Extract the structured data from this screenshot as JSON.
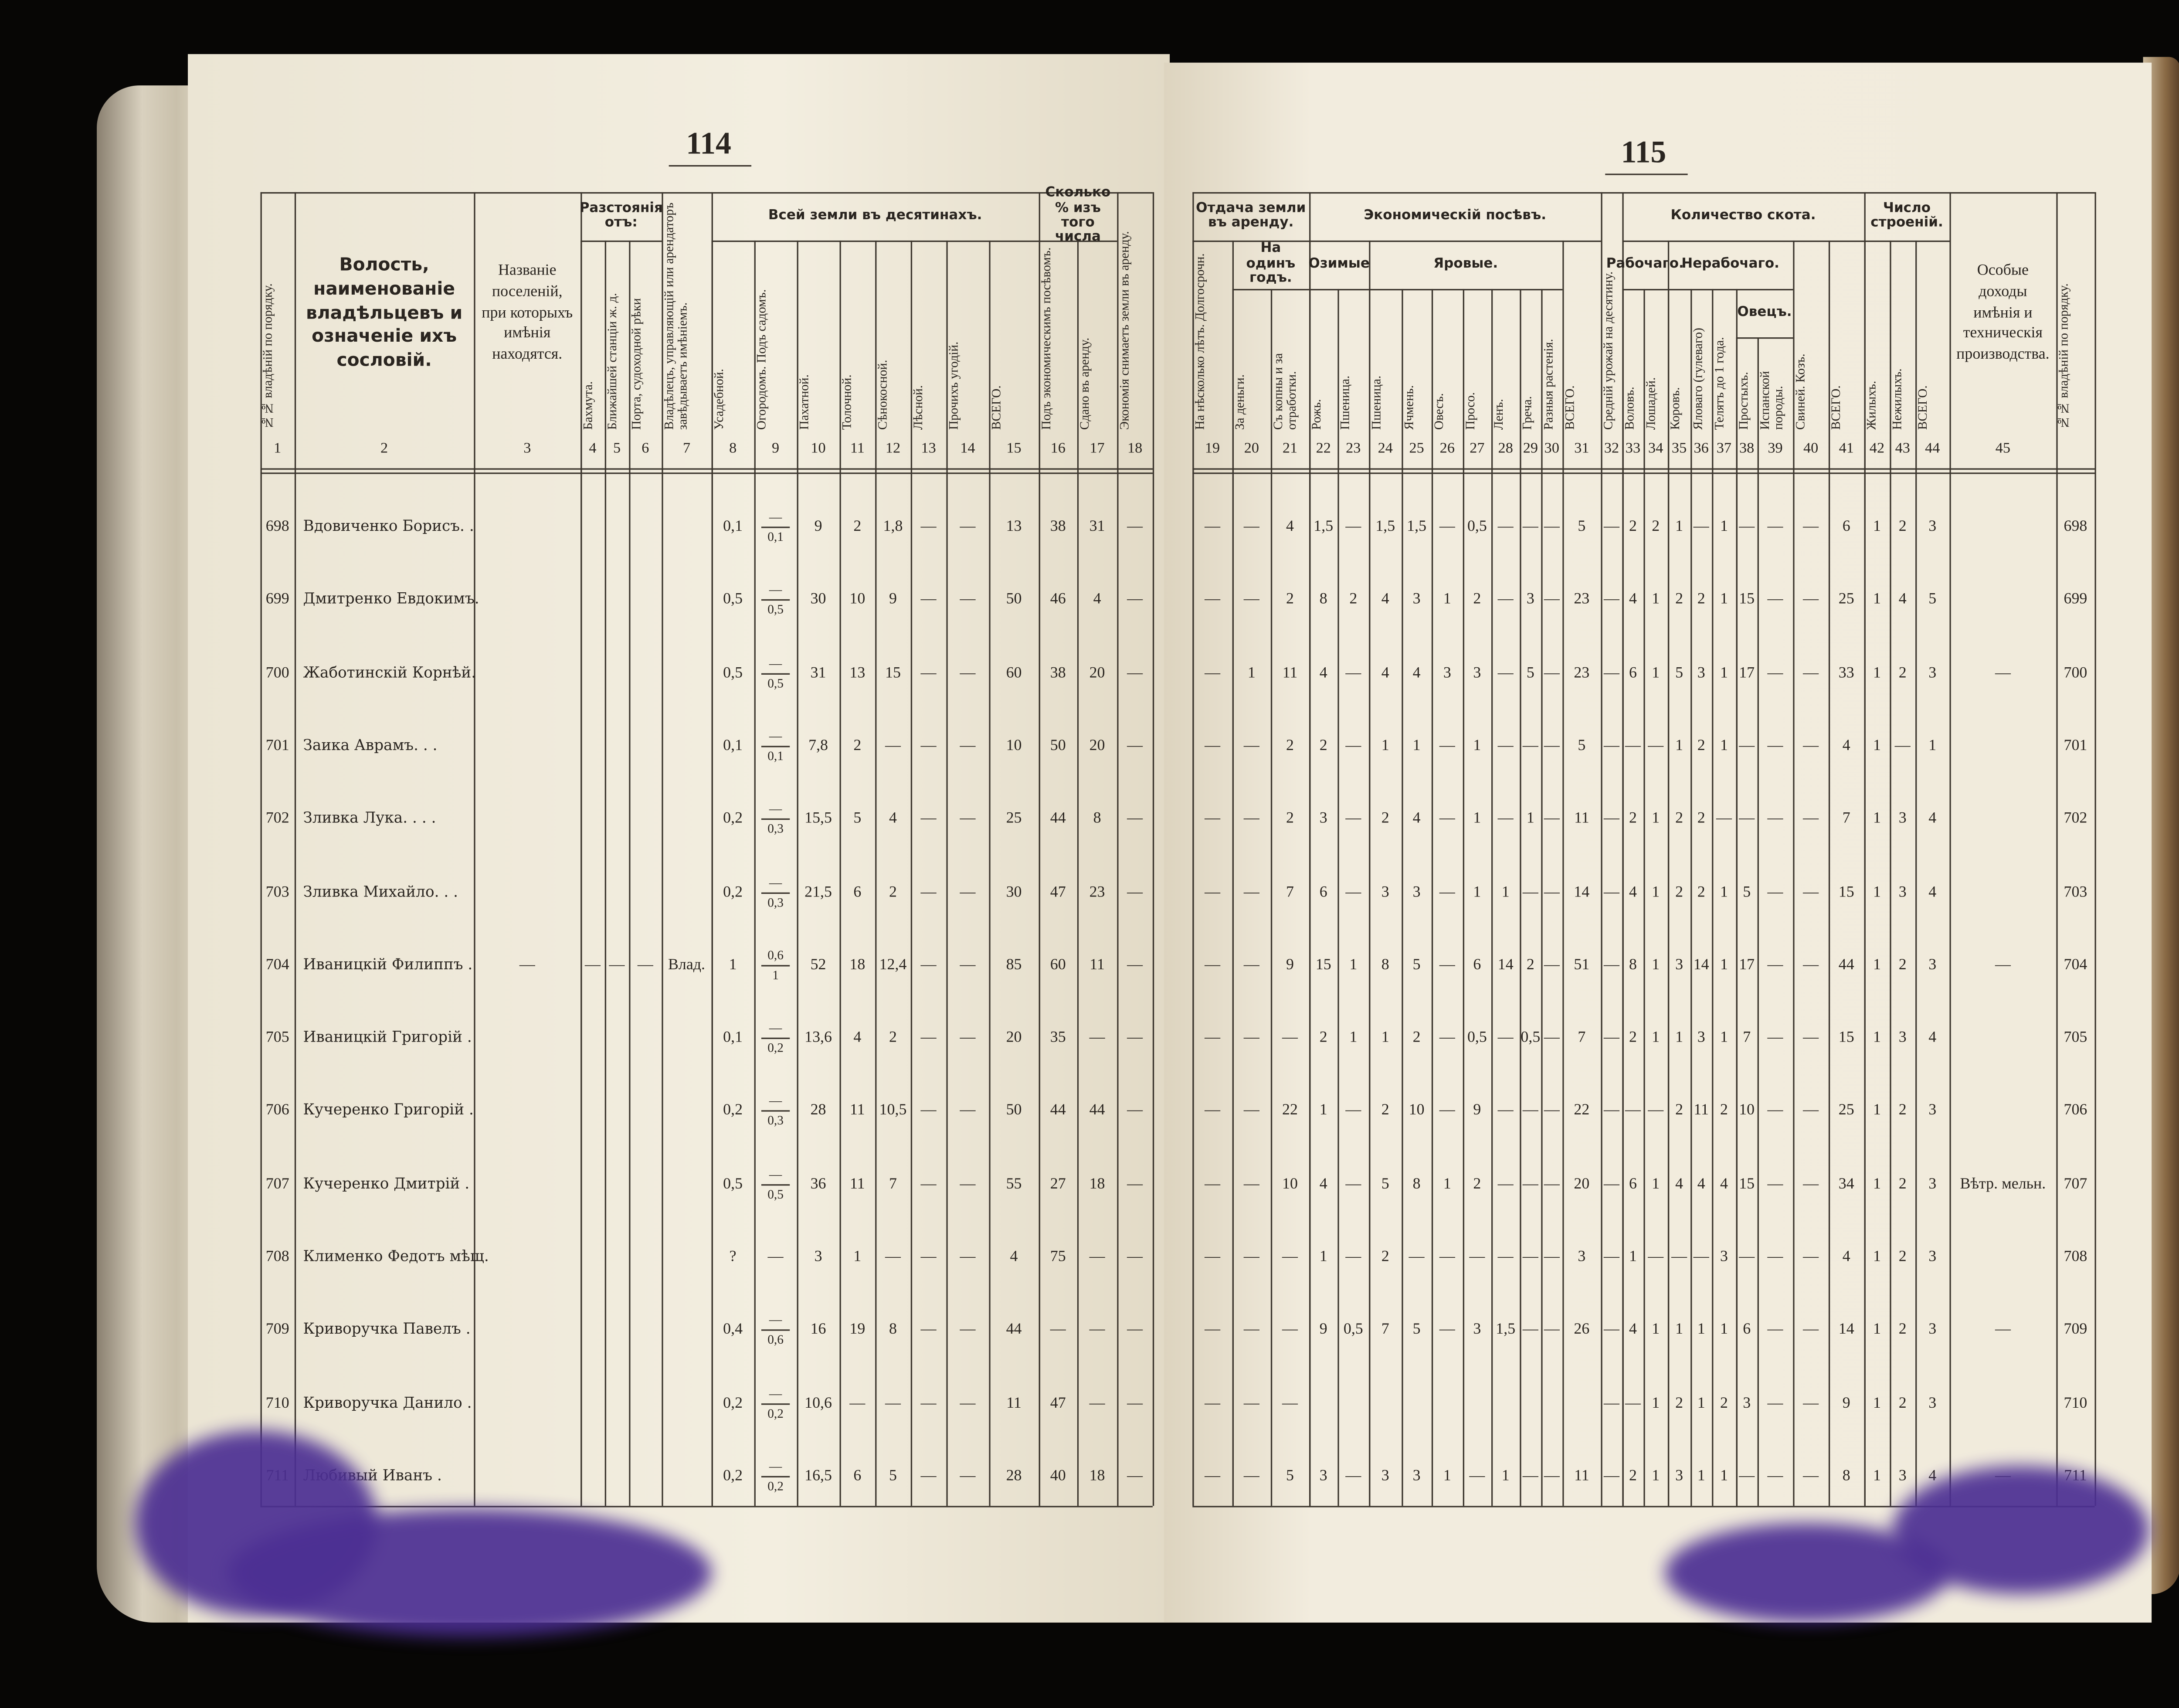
{
  "left_page": {
    "page_number": 114,
    "header": [
      {
        "number": 1,
        "label": "№№ владѣній по порядку."
      },
      {
        "number": 2,
        "label": "Волость, наименованіе владѣльцевъ и означеніе ихъ сословій."
      },
      {
        "number": 3,
        "label": "Названіе поселеній, при которыхъ имѣнія находятся."
      },
      {
        "label": "Разстоянія отъ:",
        "columns": [
          {
            "number": 4,
            "label": "Бахмута."
          },
          {
            "number": 5,
            "label": "Ближайшей станціи ж. д."
          },
          {
            "number": 6,
            "label": "Порта, судоходной рѣки"
          }
        ]
      },
      {
        "number": 7,
        "label": "Владѣлецъ, управляющій или арендаторъ завѣдываетъ имѣніемъ."
      },
      {
        "label": "Всей земли въ десятинахъ.",
        "columns": [
          {
            "number": 8,
            "label": "Усадебной."
          },
          {
            "number": 9,
            "label": "Огородомъ. Подъ садомъ."
          },
          {
            "number": 10,
            "label": "Пахатной."
          },
          {
            "number": 11,
            "label": "Толочной."
          },
          {
            "number": 12,
            "label": "Сѣнокосной."
          },
          {
            "number": 13,
            "label": "Лѣсной."
          },
          {
            "number": 14,
            "label": "Прочихъ угодій."
          },
          {
            "number": 15,
            "label": "ВСЕГО."
          }
        ]
      },
      {
        "label": "Сколько % изъ того числа",
        "columns": [
          {
            "number": 16,
            "label": "Подъ экономическимъ посѣвомъ."
          },
          {
            "number": 17,
            "label": "Сдано въ аренду."
          }
        ]
      },
      {
        "number": 18,
        "label": "Экономія снимаетъ земли въ аренду."
      }
    ],
    "rows": [
      [
        698,
        "Вдовиченко Борисъ. .",
        null,
        null,
        null,
        null,
        null,
        "0,1",
        {
          "top": "—",
          "bottom": "0,1"
        },
        9,
        2,
        "1,8",
        "—",
        "—",
        13,
        38,
        31,
        "—"
      ],
      [
        699,
        "Дмитренко Евдокимъ.",
        null,
        null,
        null,
        null,
        null,
        "0,5",
        {
          "top": "—",
          "bottom": "0,5"
        },
        30,
        10,
        9,
        "—",
        "—",
        50,
        46,
        4,
        "—"
      ],
      [
        700,
        "Жаботинскій Корнѣй.",
        null,
        null,
        null,
        null,
        null,
        "0,5",
        {
          "top": "—",
          "bottom": "0,5"
        },
        31,
        13,
        15,
        "—",
        "—",
        60,
        38,
        20,
        "—"
      ],
      [
        701,
        "Заика Аврамъ. . .",
        null,
        null,
        null,
        null,
        null,
        "0,1",
        {
          "top": "—",
          "bottom": "0,1"
        },
        "7,8",
        2,
        "—",
        "—",
        "—",
        10,
        50,
        20,
        "—"
      ],
      [
        702,
        "Зливка Лука. . . .",
        null,
        null,
        null,
        null,
        null,
        "0,2",
        {
          "top": "—",
          "bottom": "0,3"
        },
        "15,5",
        5,
        4,
        "—",
        "—",
        25,
        44,
        8,
        "—"
      ],
      [
        703,
        "Зливка Михайло. . .",
        null,
        null,
        null,
        null,
        null,
        "0,2",
        {
          "top": "—",
          "bottom": "0,3"
        },
        "21,5",
        6,
        2,
        "—",
        "—",
        30,
        47,
        23,
        "—"
      ],
      [
        704,
        "Иваницкій Филиппъ .",
        "—",
        "—",
        "—",
        "—",
        "Влад.",
        1,
        {
          "top": "0,6",
          "bottom": "1"
        },
        52,
        18,
        "12,4",
        "—",
        "—",
        85,
        60,
        11,
        "—"
      ],
      [
        705,
        "Иваницкій Григорій .",
        null,
        null,
        null,
        null,
        null,
        "0,1",
        {
          "top": "—",
          "bottom": "0,2"
        },
        "13,6",
        4,
        2,
        "—",
        "—",
        20,
        35,
        "—",
        "—"
      ],
      [
        706,
        "Кучеренко Григорій .",
        null,
        null,
        null,
        null,
        null,
        "0,2",
        {
          "top": "—",
          "bottom": "0,3"
        },
        28,
        11,
        "10,5",
        "—",
        "—",
        50,
        44,
        44,
        "—"
      ],
      [
        707,
        "Кучеренко Дмитрій .",
        null,
        null,
        null,
        null,
        null,
        "0,5",
        {
          "top": "—",
          "bottom": "0,5"
        },
        36,
        11,
        7,
        "—",
        "—",
        55,
        27,
        18,
        "—"
      ],
      [
        708,
        "Клименко Федотъ мѣщ.",
        null,
        null,
        null,
        null,
        null,
        "?",
        "—",
        3,
        1,
        "—",
        "—",
        "—",
        4,
        75,
        "—",
        "—"
      ],
      [
        709,
        "Криворучка Павелъ .",
        null,
        null,
        null,
        null,
        null,
        "0,4",
        {
          "top": "—",
          "bottom": "0,6"
        },
        16,
        19,
        8,
        "—",
        "—",
        44,
        "—",
        "—",
        "—"
      ],
      [
        710,
        "Криворучка Данило .",
        null,
        null,
        null,
        null,
        null,
        "0,2",
        {
          "top": "—",
          "bottom": "0,2"
        },
        "10,6",
        "—",
        "—",
        "—",
        "—",
        11,
        47,
        "—",
        "—"
      ],
      [
        711,
        "Любивый Иванъ .",
        null,
        null,
        null,
        null,
        null,
        "0,2",
        {
          "top": "—",
          "bottom": "0,2"
        },
        "16,5",
        6,
        5,
        "—",
        "—",
        28,
        40,
        18,
        "—"
      ]
    ]
  },
  "right_page": {
    "page_number": 115,
    "header": [
      {
        "label": "Отдача земли въ аренду.",
        "columns": [
          {
            "number": 19,
            "label": "На нѣсколько лѣтъ. Долгосрочн."
          },
          {
            "label": "На одинъ годъ.",
            "columns": [
              {
                "number": 20,
                "label": "За деньги."
              },
              {
                "number": 21,
                "label": "Съ копны и за отработки."
              }
            ]
          }
        ]
      },
      {
        "label": "Экономическій посѣвъ.",
        "columns": [
          {
            "label": "Озимые",
            "columns": [
              {
                "number": 22,
                "label": "Рожь."
              },
              {
                "number": 23,
                "label": "Пшеница."
              }
            ]
          },
          {
            "label": "Яровые.",
            "columns": [
              {
                "number": 24,
                "label": "Пшеница."
              },
              {
                "number": 25,
                "label": "Ячмень."
              },
              {
                "number": 26,
                "label": "Овесъ."
              },
              {
                "number": 27,
                "label": "Просо."
              },
              {
                "number": 28,
                "label": "Ленъ."
              },
              {
                "number": 29,
                "label": "Греча."
              },
              {
                "number": 30,
                "label": "Разныя растенія."
              }
            ]
          },
          {
            "number": 31,
            "label": "ВСЕГО."
          }
        ]
      },
      {
        "number": 32,
        "label": "Средній урожай на десятину."
      },
      {
        "label": "Количество скота.",
        "columns": [
          {
            "label": "Рабочаго.",
            "columns": [
              {
                "number": 33,
                "label": "Воловъ."
              },
              {
                "number": 34,
                "label": "Лошадей."
              }
            ]
          },
          {
            "label": "Нерабочаго.",
            "columns": [
              {
                "number": 35,
                "label": "Коровъ."
              },
              {
                "number": 36,
                "label": "Яловаго (гулеваго)"
              },
              {
                "number": 37,
                "label": "Телятъ до 1 года."
              },
              {
                "label": "Овецъ.",
                "columns": [
                  {
                    "number": 38,
                    "label": "Простыхъ."
                  },
                  {
                    "number": 39,
                    "label": "Испанской породы."
                  }
                ]
              }
            ]
          },
          {
            "number": 40,
            "label": "Свиней. Козъ."
          },
          {
            "number": 41,
            "label": "ВСЕГО."
          }
        ]
      },
      {
        "label": "Число строеній.",
        "columns": [
          {
            "number": 42,
            "label": "Жилыхъ."
          },
          {
            "number": 43,
            "label": "Нежилыхъ."
          },
          {
            "number": 44,
            "label": "ВСЕГО."
          }
        ]
      },
      {
        "number": 45,
        "label": "Особые доходы имѣнія и техническія производства."
      },
      {
        "label": "№№ владѣній по порядку."
      }
    ],
    "rows": [
      [
        "—",
        "—",
        4,
        "1,5",
        "—",
        "1,5",
        "1,5",
        "—",
        "0,5",
        "—",
        "—",
        "—",
        5,
        "—",
        2,
        2,
        1,
        "—",
        1,
        "—",
        "—",
        "—",
        6,
        1,
        2,
        3,
        null,
        698
      ],
      [
        "—",
        "—",
        2,
        8,
        2,
        4,
        3,
        1,
        2,
        "—",
        3,
        "—",
        23,
        "—",
        4,
        1,
        2,
        2,
        1,
        15,
        "—",
        "—",
        25,
        1,
        4,
        5,
        null,
        699
      ],
      [
        "—",
        1,
        11,
        4,
        "—",
        4,
        4,
        3,
        3,
        "—",
        5,
        "—",
        23,
        "—",
        6,
        1,
        5,
        3,
        1,
        17,
        "—",
        "—",
        33,
        1,
        2,
        3,
        "—",
        700
      ],
      [
        "—",
        "—",
        2,
        2,
        "—",
        1,
        1,
        "—",
        1,
        "—",
        "—",
        "—",
        5,
        "—",
        "—",
        "—",
        1,
        2,
        1,
        "—",
        "—",
        "—",
        4,
        1,
        "—",
        1,
        null,
        701
      ],
      [
        "—",
        "—",
        2,
        3,
        "—",
        2,
        4,
        "—",
        1,
        "—",
        1,
        "—",
        11,
        "—",
        2,
        1,
        2,
        2,
        "—",
        "—",
        "—",
        "—",
        7,
        1,
        3,
        4,
        null,
        702
      ],
      [
        "—",
        "—",
        7,
        6,
        "—",
        3,
        3,
        "—",
        1,
        1,
        "—",
        "—",
        14,
        "—",
        4,
        1,
        2,
        2,
        1,
        5,
        "—",
        "—",
        15,
        1,
        3,
        4,
        null,
        703
      ],
      [
        "—",
        "—",
        9,
        15,
        1,
        8,
        5,
        "—",
        6,
        14,
        2,
        "—",
        51,
        "—",
        8,
        1,
        3,
        14,
        1,
        17,
        "—",
        "—",
        44,
        1,
        2,
        3,
        "—",
        704
      ],
      [
        "—",
        "—",
        "—",
        2,
        1,
        1,
        2,
        "—",
        "0,5",
        "—",
        "0,5",
        "—",
        7,
        "—",
        2,
        1,
        1,
        3,
        1,
        7,
        "—",
        "—",
        15,
        1,
        3,
        4,
        null,
        705
      ],
      [
        "—",
        "—",
        22,
        1,
        "—",
        2,
        10,
        "—",
        9,
        "—",
        "—",
        "—",
        22,
        "—",
        "—",
        "—",
        2,
        11,
        2,
        10,
        "—",
        "—",
        25,
        1,
        2,
        3,
        null,
        706
      ],
      [
        "—",
        "—",
        10,
        4,
        "—",
        5,
        8,
        1,
        2,
        "—",
        "—",
        "—",
        20,
        "—",
        6,
        1,
        4,
        4,
        4,
        15,
        "—",
        "—",
        34,
        1,
        2,
        3,
        "Вѣтр. мельн.",
        707
      ],
      [
        "—",
        "—",
        "—",
        1,
        "—",
        2,
        "—",
        "—",
        "—",
        "—",
        "—",
        "—",
        3,
        "—",
        1,
        "—",
        "—",
        "—",
        3,
        "—",
        "—",
        "—",
        4,
        1,
        2,
        3,
        null,
        708
      ],
      [
        "—",
        "—",
        "—",
        9,
        "0,5",
        7,
        5,
        "—",
        3,
        "1,5",
        "—",
        "—",
        26,
        "—",
        4,
        1,
        1,
        1,
        1,
        6,
        "—",
        "—",
        14,
        1,
        2,
        3,
        "—",
        709
      ],
      [
        "—",
        "—",
        "—",
        null,
        null,
        null,
        null,
        null,
        null,
        null,
        null,
        null,
        null,
        "—",
        "—",
        1,
        2,
        1,
        2,
        3,
        "—",
        "—",
        9,
        1,
        2,
        3,
        null,
        710
      ],
      [
        "—",
        "—",
        5,
        3,
        "—",
        3,
        3,
        1,
        "—",
        1,
        "—",
        "—",
        11,
        "—",
        2,
        1,
        3,
        1,
        1,
        "—",
        "—",
        "—",
        8,
        1,
        3,
        4,
        "—",
        711
      ]
    ]
  }
}
